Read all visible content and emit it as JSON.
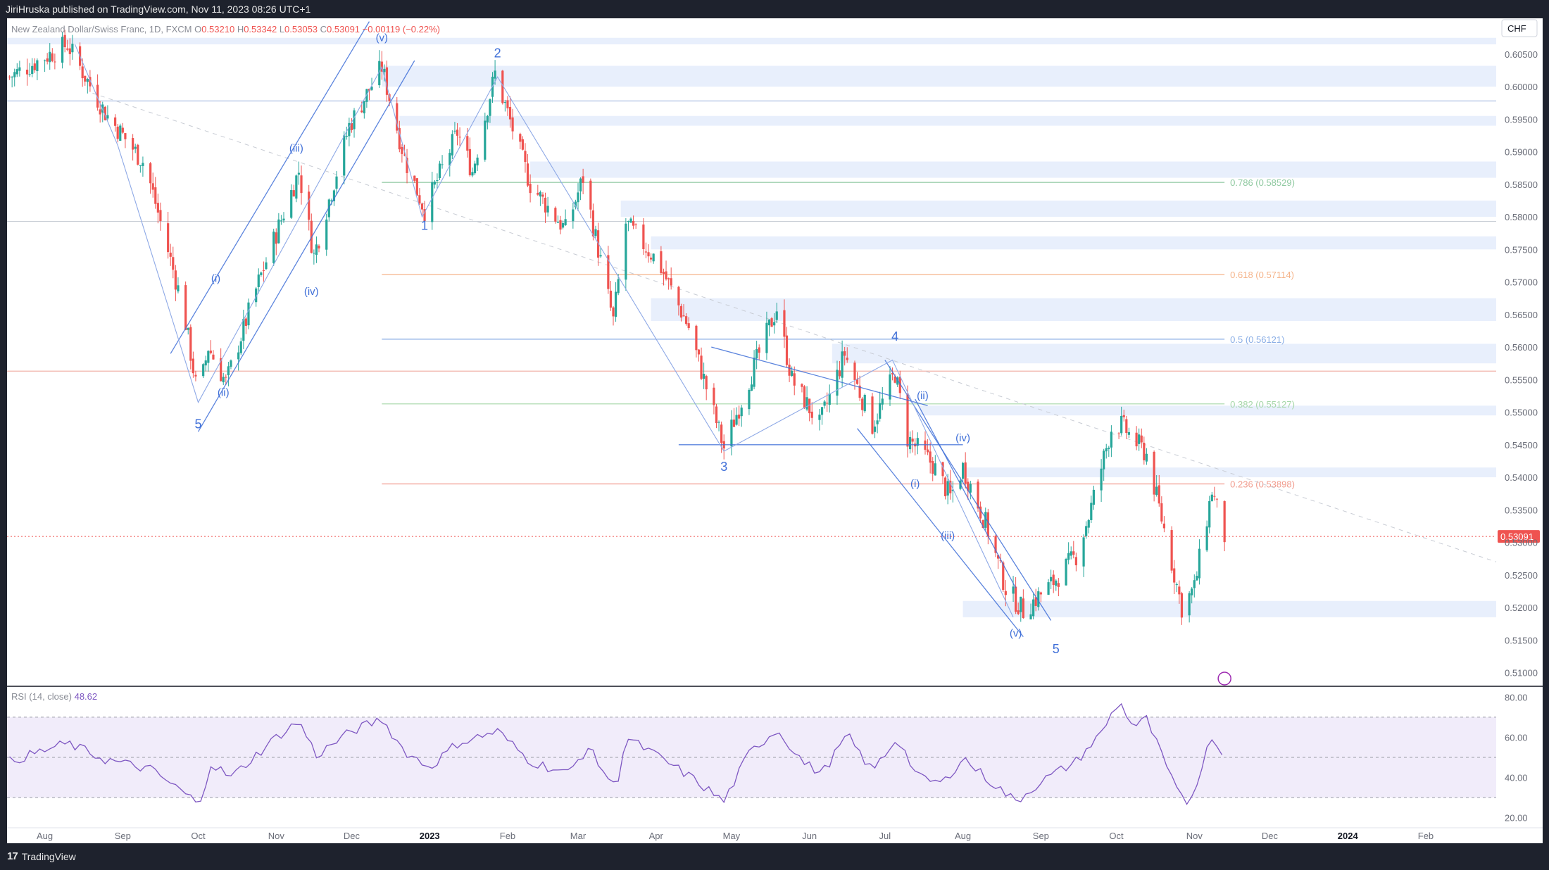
{
  "header": {
    "published": "JiriHruska published on TradingView.com, Nov 11, 2023 08:26 UTC+1"
  },
  "footer": {
    "logo_text": "TradingView",
    "logo_mark": "17"
  },
  "colors": {
    "up": "#26a69a",
    "down": "#ef5350",
    "wave": "#3f6fd8",
    "rsi": "#7e57c2",
    "zone": "#e8effc"
  },
  "chart_data": {
    "type": "candlestick",
    "symbol": {
      "name": "New Zealand Dollar/Swiss Franc, 1D, FXCM",
      "ohlc": [
        {
          "k": "O",
          "v": "0.53210"
        },
        {
          "k": "H",
          "v": "0.53342"
        },
        {
          "k": "L",
          "v": "0.53053"
        },
        {
          "k": "C",
          "v": "0.53091"
        },
        {
          "k": "",
          "v": "−0.00119 (−0.22%)"
        }
      ]
    },
    "currency": "CHF",
    "ylim": [
      0.508,
      0.6105
    ],
    "y_ticks": [
      "0.60500",
      "0.60000",
      "0.59500",
      "0.59000",
      "0.58500",
      "0.58000",
      "0.57500",
      "0.57000",
      "0.56500",
      "0.56000",
      "0.55500",
      "0.55000",
      "0.54500",
      "0.54000",
      "0.53500",
      "0.53000",
      "0.52500",
      "0.52000",
      "0.51500",
      "0.51000"
    ],
    "last_price": {
      "value": 0.53091,
      "label": "0.53091"
    },
    "x_range": [
      "2022-07-17",
      "2024-02-29"
    ],
    "x_ticks": [
      {
        "date": "2022-08-01",
        "label": "Aug"
      },
      {
        "date": "2022-09-01",
        "label": "Sep"
      },
      {
        "date": "2022-10-01",
        "label": "Oct"
      },
      {
        "date": "2022-11-01",
        "label": "Nov"
      },
      {
        "date": "2022-12-01",
        "label": "Dec"
      },
      {
        "date": "2023-01-01",
        "label": "2023"
      },
      {
        "date": "2023-02-01",
        "label": "Feb"
      },
      {
        "date": "2023-03-01",
        "label": "Mar"
      },
      {
        "date": "2023-04-01",
        "label": "Apr"
      },
      {
        "date": "2023-05-01",
        "label": "May"
      },
      {
        "date": "2023-06-01",
        "label": "Jun"
      },
      {
        "date": "2023-07-01",
        "label": "Jul"
      },
      {
        "date": "2023-08-01",
        "label": "Aug"
      },
      {
        "date": "2023-09-01",
        "label": "Sep"
      },
      {
        "date": "2023-10-01",
        "label": "Oct"
      },
      {
        "date": "2023-11-01",
        "label": "Nov"
      },
      {
        "date": "2023-12-01",
        "label": "Dec"
      },
      {
        "date": "2024-01-01",
        "label": "2024"
      },
      {
        "date": "2024-02-01",
        "label": "Feb"
      }
    ],
    "price_path": [
      [
        "2022-07-18",
        0.6015
      ],
      [
        "2022-08-10",
        0.6065
      ],
      [
        "2022-08-25",
        0.596
      ],
      [
        "2022-09-10",
        0.588
      ],
      [
        "2022-09-25",
        0.566
      ],
      [
        "2022-10-01",
        0.552
      ],
      [
        "2022-10-05",
        0.56
      ],
      [
        "2022-10-12",
        0.5545
      ],
      [
        "2022-10-25",
        0.57
      ],
      [
        "2022-11-10",
        0.587
      ],
      [
        "2022-11-16",
        0.574
      ],
      [
        "2022-11-30",
        0.594
      ],
      [
        "2022-12-13",
        0.603
      ],
      [
        "2022-12-22",
        0.589
      ],
      [
        "2022-12-30",
        0.581
      ],
      [
        "2023-01-12",
        0.593
      ],
      [
        "2023-01-18",
        0.587
      ],
      [
        "2023-01-27",
        0.602
      ],
      [
        "2023-02-10",
        0.585
      ],
      [
        "2023-02-24",
        0.578
      ],
      [
        "2023-03-03",
        0.586
      ],
      [
        "2023-03-15",
        0.564
      ],
      [
        "2023-03-20",
        0.579
      ],
      [
        "2023-04-02",
        0.573
      ],
      [
        "2023-04-14",
        0.563
      ],
      [
        "2023-04-28",
        0.5445
      ],
      [
        "2023-05-10",
        0.557
      ],
      [
        "2023-05-19",
        0.566
      ],
      [
        "2023-05-25",
        0.555
      ],
      [
        "2023-06-05",
        0.548
      ],
      [
        "2023-06-15",
        0.559
      ],
      [
        "2023-06-26",
        0.548
      ],
      [
        "2023-07-05",
        0.556
      ],
      [
        "2023-07-10",
        0.546
      ],
      [
        "2023-07-20",
        0.542
      ],
      [
        "2023-07-27",
        0.537
      ],
      [
        "2023-08-01",
        0.5415
      ],
      [
        "2023-08-10",
        0.533
      ],
      [
        "2023-08-18",
        0.523
      ],
      [
        "2023-08-25",
        0.5195
      ],
      [
        "2023-09-05",
        0.5235
      ],
      [
        "2023-09-15",
        0.528
      ],
      [
        "2023-09-20",
        0.534
      ],
      [
        "2023-09-29",
        0.5475
      ],
      [
        "2023-10-03",
        0.548
      ],
      [
        "2023-10-13",
        0.5435
      ],
      [
        "2023-10-20",
        0.532
      ],
      [
        "2023-10-27",
        0.52
      ],
      [
        "2023-11-01",
        0.523
      ],
      [
        "2023-11-08",
        0.538
      ],
      [
        "2023-11-13",
        0.5309
      ]
    ],
    "channels": [
      {
        "from": [
          "2022-09-20",
          0.559
        ],
        "to": [
          "2022-12-08",
          0.61
        ]
      },
      {
        "from": [
          "2022-10-01",
          0.547
        ],
        "to": [
          "2022-12-26",
          0.604
        ]
      },
      {
        "from": [
          "2023-04-23",
          0.56
        ],
        "to": [
          "2023-07-18",
          0.551
        ]
      },
      {
        "from": [
          "2023-04-10",
          0.545
        ],
        "to": [
          "2023-08-01",
          0.545
        ]
      },
      {
        "from": [
          "2023-06-20",
          0.5475
        ],
        "to": [
          "2023-08-25",
          0.5155
        ]
      },
      {
        "from": [
          "2023-07-01",
          0.558
        ],
        "to": [
          "2023-09-05",
          0.518
        ]
      },
      {
        "from": [
          "2023-07-13",
          0.552
        ],
        "to": [
          "2023-08-22",
          0.523
        ]
      }
    ],
    "wave_path": [
      [
        "2022-08-13",
        0.6065
      ],
      [
        "2022-08-30",
        0.591
      ],
      [
        "2022-10-01",
        0.5515
      ],
      [
        "2022-12-13",
        0.603
      ],
      [
        "2022-12-29",
        0.58
      ],
      [
        "2023-01-28",
        0.6015
      ],
      [
        "2023-04-28",
        0.544
      ],
      [
        "2023-07-04",
        0.558
      ],
      [
        "2023-08-21",
        0.5185
      ]
    ],
    "trend_line": {
      "from": [
        "2022-08-20",
        0.599
      ],
      "to": [
        "2024-02-29",
        0.527
      ]
    },
    "wave_labels": [
      {
        "text": "5",
        "date": "2022-10-01",
        "price": 0.5475
      },
      {
        "text": "(i)",
        "date": "2022-10-08",
        "price": 0.57
      },
      {
        "text": "(ii)",
        "date": "2022-10-11",
        "price": 0.5525
      },
      {
        "text": "(iii)",
        "date": "2022-11-09",
        "price": 0.59
      },
      {
        "text": "(iv)",
        "date": "2022-11-15",
        "price": 0.568
      },
      {
        "text": "(v)",
        "date": "2022-12-13",
        "price": 0.607
      },
      {
        "text": "1",
        "date": "2022-12-30",
        "price": 0.578
      },
      {
        "text": "2",
        "date": "2023-01-28",
        "price": 0.6045
      },
      {
        "text": "3",
        "date": "2023-04-28",
        "price": 0.541
      },
      {
        "text": "4",
        "date": "2023-07-05",
        "price": 0.561
      },
      {
        "text": "(ii)",
        "date": "2023-07-16",
        "price": 0.552
      },
      {
        "text": "(i)",
        "date": "2023-07-13",
        "price": 0.5385
      },
      {
        "text": "(iv)",
        "date": "2023-08-01",
        "price": 0.5455
      },
      {
        "text": "(iii)",
        "date": "2023-07-26",
        "price": 0.5305
      },
      {
        "text": "(v)",
        "date": "2023-08-22",
        "price": 0.5155
      },
      {
        "text": "5",
        "date": "2023-09-07",
        "price": 0.513
      }
    ],
    "supply_demand_zones": [
      [
        0.6075,
        0.6065,
        "2022-07-17"
      ],
      [
        0.6032,
        0.6,
        "2022-12-13"
      ],
      [
        0.5955,
        0.594,
        "2022-12-20"
      ],
      [
        0.5885,
        0.586,
        "2023-02-10"
      ],
      [
        0.5825,
        0.58,
        "2023-03-18"
      ],
      [
        0.577,
        0.575,
        "2023-03-30"
      ],
      [
        0.5675,
        0.564,
        "2023-03-30"
      ],
      [
        0.5605,
        0.5575,
        "2023-06-10"
      ],
      [
        0.551,
        0.5495,
        "2023-07-15"
      ],
      [
        0.5415,
        0.54,
        "2023-08-01"
      ],
      [
        0.521,
        0.5185,
        "2023-08-01"
      ]
    ],
    "horizontal_lines": [
      {
        "price": 0.5978,
        "from": "2022-07-17",
        "color": "#9fb6e0"
      },
      {
        "price": 0.5793,
        "from": "2022-07-17",
        "color": "#c9ced6"
      },
      {
        "price": 0.5563,
        "from": "2022-07-17",
        "color": "#f1b3a9"
      }
    ],
    "fib_levels": [
      {
        "ratio": "0.786",
        "label": "0.786 (0.58529)",
        "price": 0.58529,
        "color": "#8fc9a0"
      },
      {
        "ratio": "0.618",
        "label": "0.618 (0.57114)",
        "price": 0.57114,
        "color": "#f5b48a"
      },
      {
        "ratio": "0.5",
        "label": "0.5 (0.56121)",
        "price": 0.56121,
        "color": "#8aaee6"
      },
      {
        "ratio": "0.382",
        "label": "0.382 (0.55127)",
        "price": 0.55127,
        "color": "#a6d7a8"
      },
      {
        "ratio": "0.236",
        "label": "0.236 (0.53898)",
        "price": 0.53898,
        "color": "#f19c8e"
      }
    ],
    "fib_start": "2022-12-13",
    "fib_end": "2023-11-13",
    "rsi": {
      "label": "RSI (14, close)",
      "value": "48.62",
      "ylim": [
        15,
        85
      ],
      "upper": 70,
      "lower": 30,
      "mid": 50,
      "ticks": [
        "80.00",
        "60.00",
        "40.00",
        "20.00"
      ],
      "path": [
        [
          "2022-07-18",
          48
        ],
        [
          "2022-08-10",
          57
        ],
        [
          "2022-08-25",
          49
        ],
        [
          "2022-09-12",
          44
        ],
        [
          "2022-09-28",
          30
        ],
        [
          "2022-10-01",
          25
        ],
        [
          "2022-10-06",
          47
        ],
        [
          "2022-10-14",
          40
        ],
        [
          "2022-11-01",
          60
        ],
        [
          "2022-11-10",
          68
        ],
        [
          "2022-11-17",
          51
        ],
        [
          "2022-12-01",
          63
        ],
        [
          "2022-12-13",
          69
        ],
        [
          "2022-12-22",
          53
        ],
        [
          "2023-01-01",
          45
        ],
        [
          "2023-01-12",
          57
        ],
        [
          "2023-01-28",
          63
        ],
        [
          "2023-02-10",
          48
        ],
        [
          "2023-02-25",
          42
        ],
        [
          "2023-03-05",
          55
        ],
        [
          "2023-03-16",
          34
        ],
        [
          "2023-03-20",
          60
        ],
        [
          "2023-04-01",
          51
        ],
        [
          "2023-04-15",
          40
        ],
        [
          "2023-04-28",
          28
        ],
        [
          "2023-05-08",
          52
        ],
        [
          "2023-05-19",
          64
        ],
        [
          "2023-05-30",
          47
        ],
        [
          "2023-06-06",
          42
        ],
        [
          "2023-06-16",
          61
        ],
        [
          "2023-06-26",
          43
        ],
        [
          "2023-07-06",
          60
        ],
        [
          "2023-07-14",
          40
        ],
        [
          "2023-07-24",
          37
        ],
        [
          "2023-08-01",
          50
        ],
        [
          "2023-08-10",
          40
        ],
        [
          "2023-08-22",
          28
        ],
        [
          "2023-09-01",
          38
        ],
        [
          "2023-09-15",
          48
        ],
        [
          "2023-09-25",
          62
        ],
        [
          "2023-10-02",
          78
        ],
        [
          "2023-10-08",
          65
        ],
        [
          "2023-10-13",
          69
        ],
        [
          "2023-10-25",
          33
        ],
        [
          "2023-10-30",
          27
        ],
        [
          "2023-11-08",
          61
        ],
        [
          "2023-11-13",
          49
        ]
      ]
    }
  }
}
